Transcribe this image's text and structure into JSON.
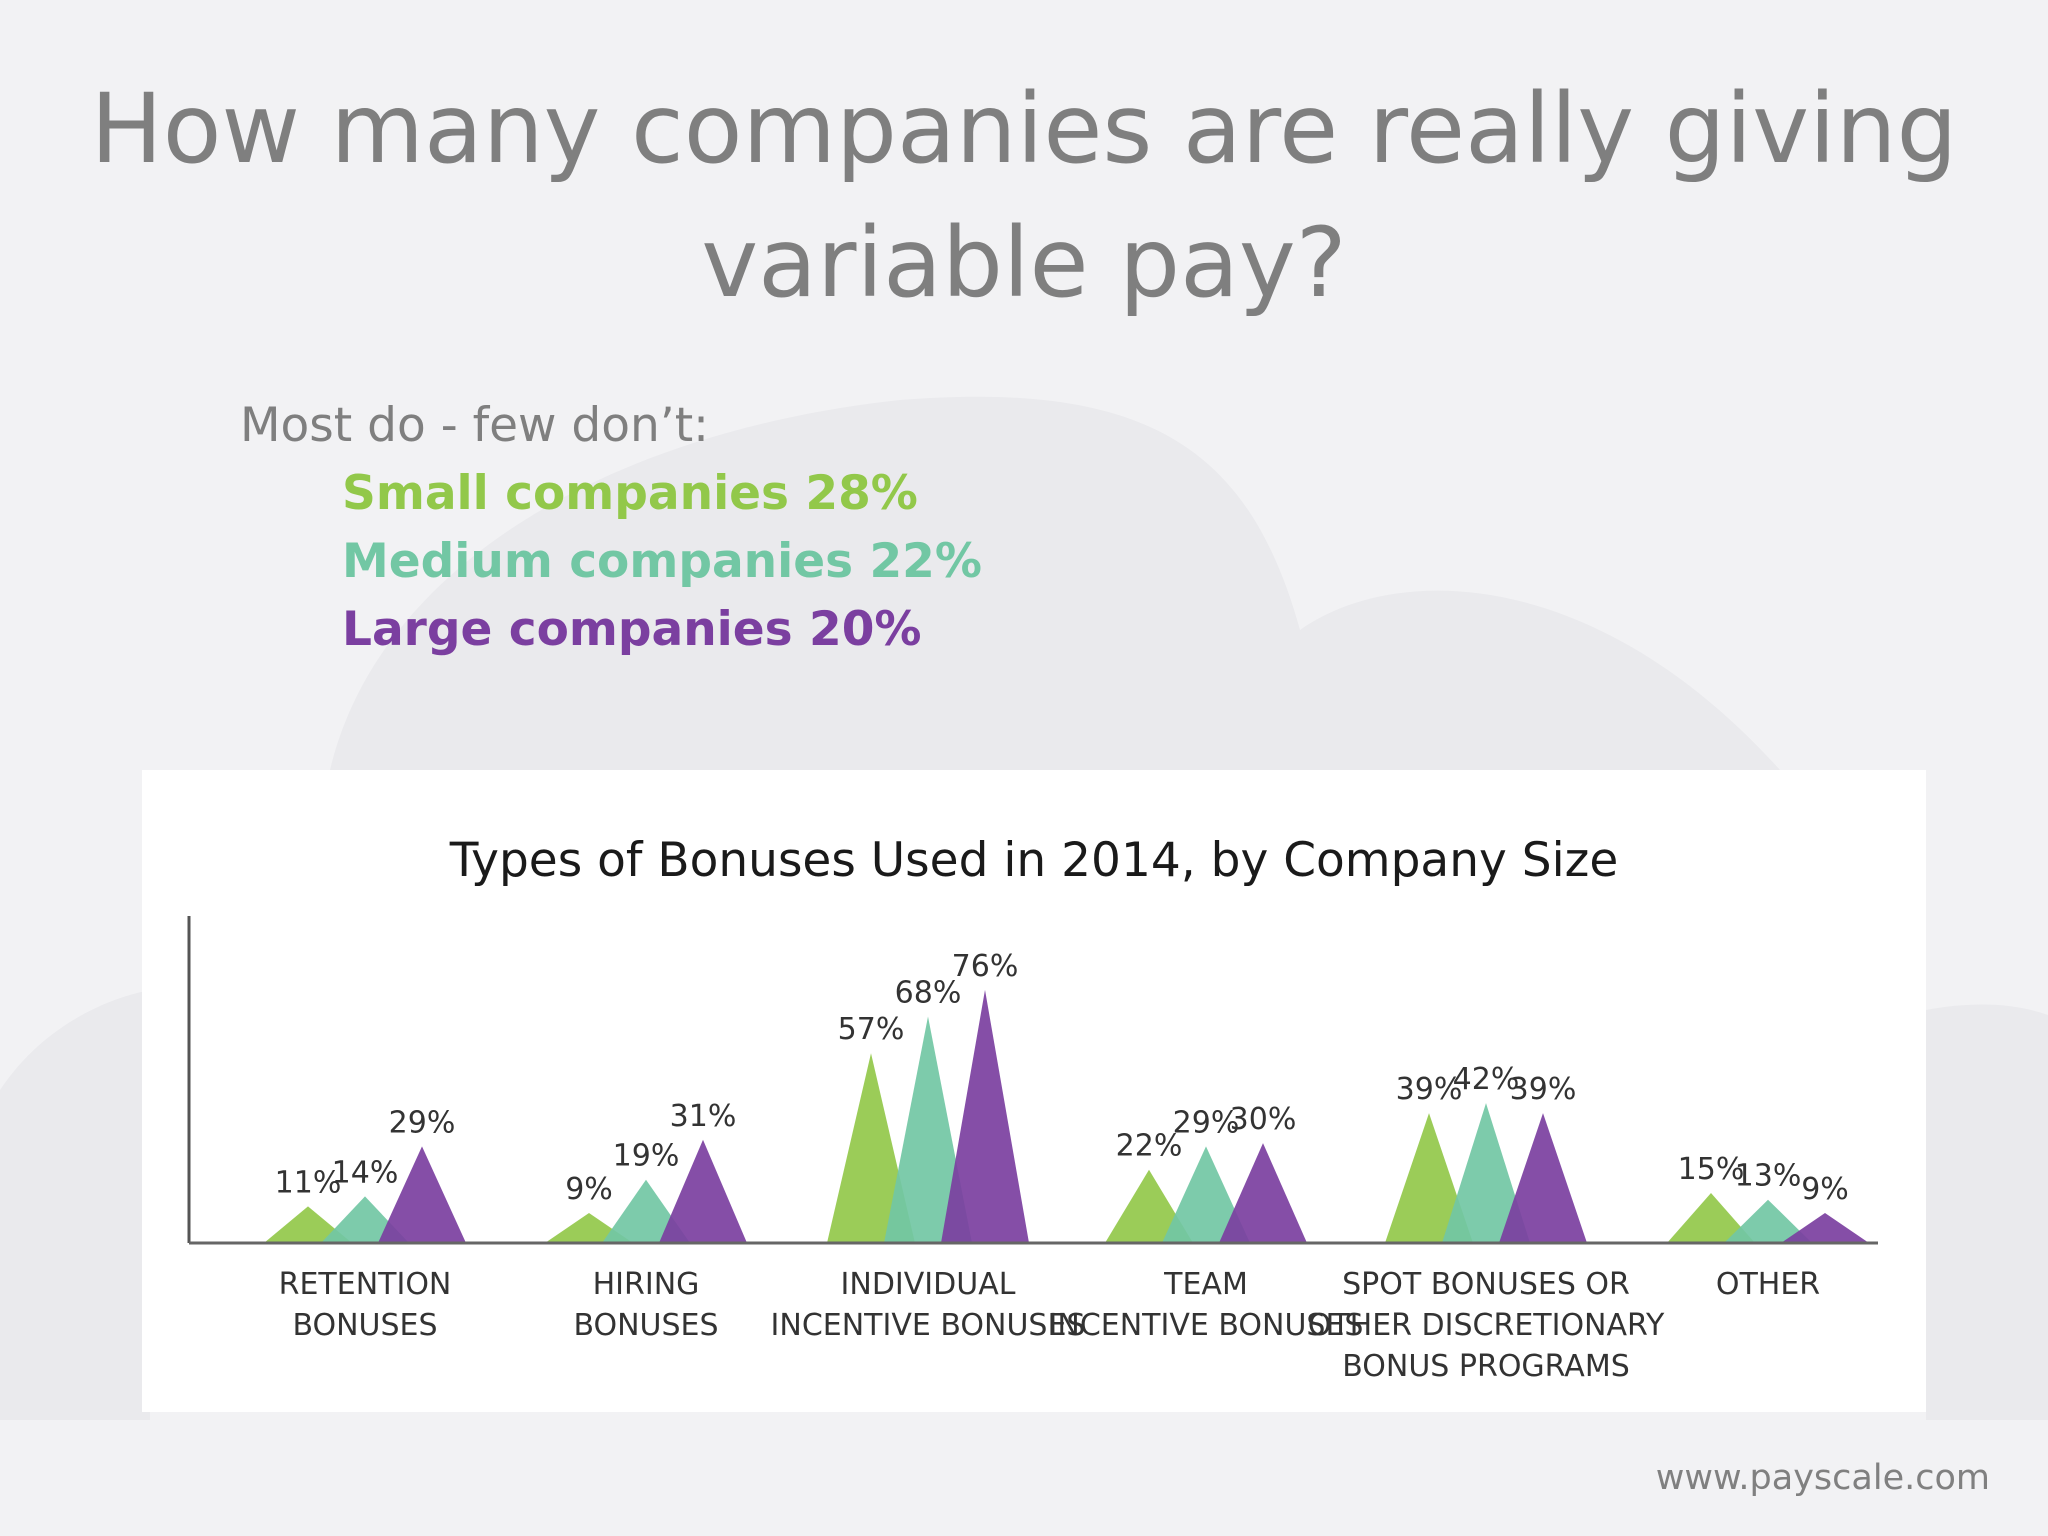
{
  "slide": {
    "title_line1": "How many companies are really giving",
    "title_line2": "variable pay?",
    "lead": "Most do - few don’t:",
    "stats": [
      {
        "text": "Small companies 28%",
        "color": "#92c84a"
      },
      {
        "text": "Medium companies 22%",
        "color": "#72c7a4"
      },
      {
        "text": "Large companies 20%",
        "color": "#7b3fa0"
      }
    ],
    "footer": "www.payscale.com"
  },
  "chart_data": {
    "type": "area",
    "title": "Types of Bonuses Used in 2014, by Company Size",
    "categories": [
      [
        "RETENTION",
        "BONUSES"
      ],
      [
        "HIRING",
        "BONUSES"
      ],
      [
        "INDIVIDUAL",
        "INCENTIVE BONUSES"
      ],
      [
        "TEAM",
        "INCENTIVE BONUSES"
      ],
      [
        "SPOT BONUSES OR",
        "OTHER DISCRETIONARY",
        "BONUS PROGRAMS"
      ],
      [
        "OTHER"
      ]
    ],
    "series": [
      {
        "color": "#92c84a",
        "values": [
          11,
          9,
          57,
          22,
          39,
          15
        ],
        "labels": [
          "11%",
          "9%",
          "57%",
          "22%",
          "39%",
          "15%"
        ]
      },
      {
        "color": "#72c7a4",
        "values": [
          14,
          19,
          68,
          29,
          42,
          13
        ],
        "labels": [
          "14%",
          "19%",
          "68%",
          "29%",
          "42%",
          "13%"
        ]
      },
      {
        "color": "#7b3fa0",
        "values": [
          29,
          31,
          76,
          30,
          39,
          9
        ],
        "labels": [
          "29%",
          "31%",
          "76%",
          "30%",
          "39%",
          "9%"
        ]
      }
    ],
    "ylim": [
      0,
      100
    ],
    "grid": false,
    "legend": "none"
  }
}
